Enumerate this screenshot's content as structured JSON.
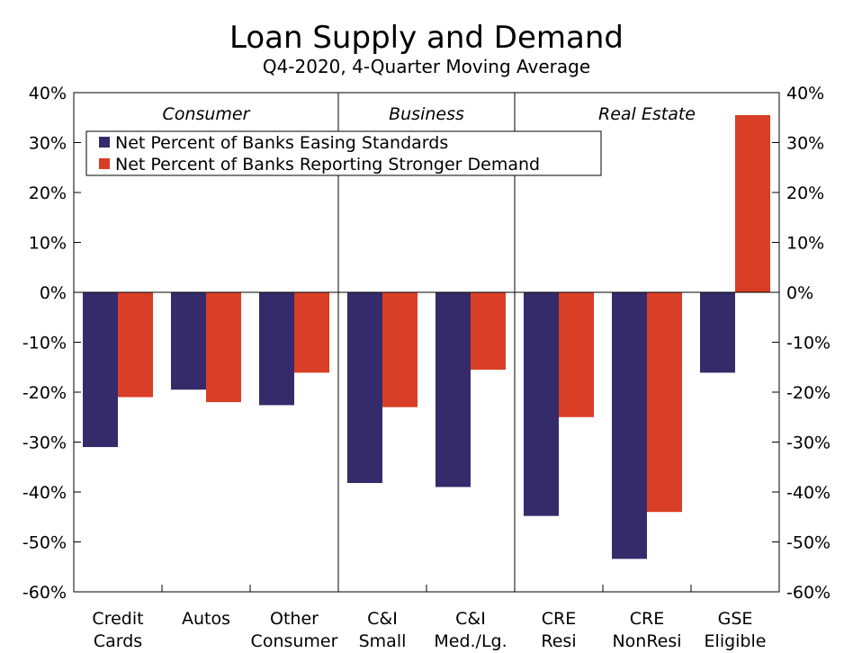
{
  "chart_data": {
    "type": "bar",
    "title": "Loan Supply and Demand",
    "subtitle": "Q4-2020, 4-Quarter Moving Average",
    "categories": [
      {
        "line1": "Credit",
        "line2": "Cards"
      },
      {
        "line1": "Autos",
        "line2": ""
      },
      {
        "line1": "Other",
        "line2": "Consumer"
      },
      {
        "line1": "C&I",
        "line2": "Small"
      },
      {
        "line1": "C&I",
        "line2": "Med./Lg."
      },
      {
        "line1": "CRE",
        "line2": "Resi"
      },
      {
        "line1": "CRE",
        "line2": "NonResi"
      },
      {
        "line1": "GSE",
        "line2": "Eligible"
      }
    ],
    "series": [
      {
        "name": "Net Percent of Banks Easing Standards",
        "color": "#352b6a",
        "values": [
          -31.0,
          -19.5,
          -22.6,
          -38.2,
          -39.0,
          -44.8,
          -53.4,
          -16.1
        ]
      },
      {
        "name": "Net Percent of Banks Reporting Stronger Demand",
        "color": "#d93e26",
        "values": [
          -21.0,
          -22.0,
          -16.1,
          -23.0,
          -15.5,
          -25.0,
          -44.0,
          35.5
        ]
      }
    ],
    "groups": [
      {
        "label": "Consumer",
        "start": 0,
        "end": 2
      },
      {
        "label": "Business",
        "start": 3,
        "end": 4
      },
      {
        "label": "Real Estate",
        "start": 5,
        "end": 7
      }
    ],
    "ylim": [
      -60,
      40
    ],
    "yticks": [
      40,
      30,
      20,
      10,
      0,
      -10,
      -20,
      -30,
      -40,
      -50,
      -60
    ],
    "ytick_labels": [
      "40%",
      "30%",
      "20%",
      "10%",
      "0%",
      "-10%",
      "-20%",
      "-30%",
      "-40%",
      "-50%",
      "-60%"
    ],
    "legend_position": "top-left",
    "xlabel": "",
    "ylabel": ""
  }
}
